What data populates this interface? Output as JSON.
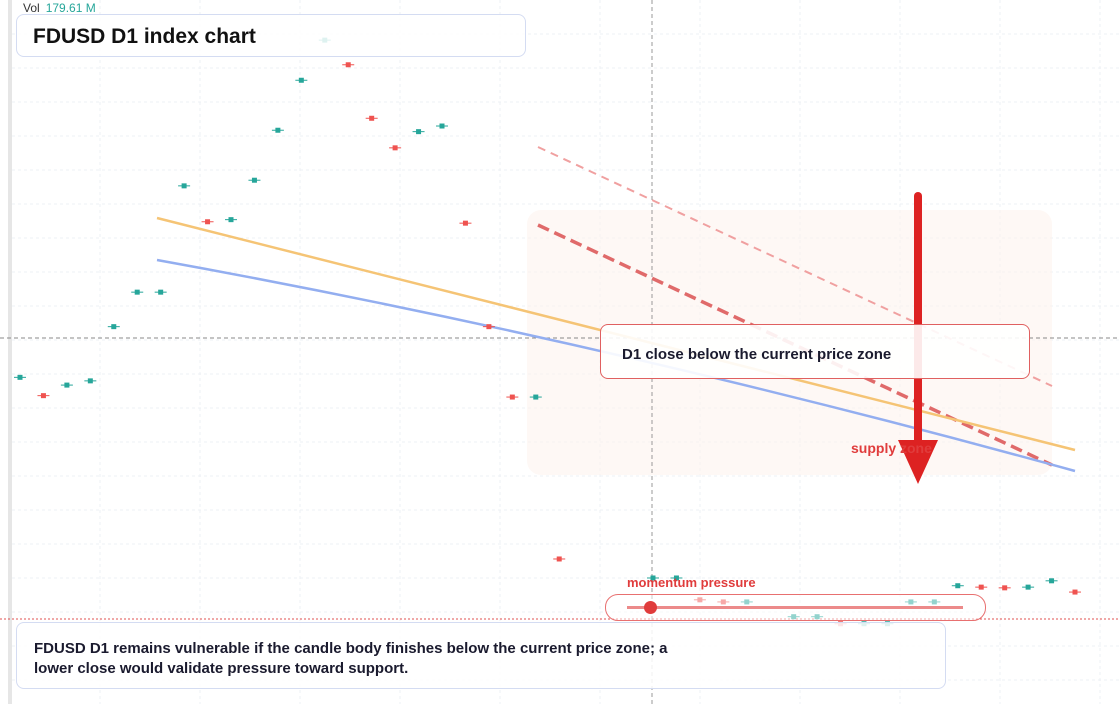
{
  "chart_data": {
    "type": "candlestick",
    "title": "FDUSD D1 index chart",
    "volume_label": "Vol",
    "volume_value": "179.61 M",
    "annotation": "D1 close below the current price zone",
    "zone_label": "supply zone",
    "momentum_label": "momentum pressure",
    "caption": "FDUSD D1 remains vulnerable if the candle body finishes below the current price zone; a lower close would validate pressure toward support.",
    "up_color": "#26a69a",
    "down_color": "#ef5350",
    "ylim": [
      0,
      100
    ],
    "values": [
      46.4,
      43.8,
      45.3,
      45.9,
      53.6,
      58.5,
      58.5,
      73.6,
      68.5,
      68.8,
      74.4,
      81.5,
      88.6,
      94.3,
      90.8,
      83.2,
      79.0,
      81.3,
      82.1,
      68.3,
      53.6,
      43.6,
      43.6,
      20.6,
      null,
      null,
      null,
      17.9,
      17.9,
      14.8,
      14.5,
      14.5,
      null,
      12.4,
      12.4,
      11.4,
      11.4,
      11.4,
      14.5,
      14.5,
      16.8,
      16.6,
      16.5,
      16.6,
      17.5,
      15.9
    ]
  }
}
